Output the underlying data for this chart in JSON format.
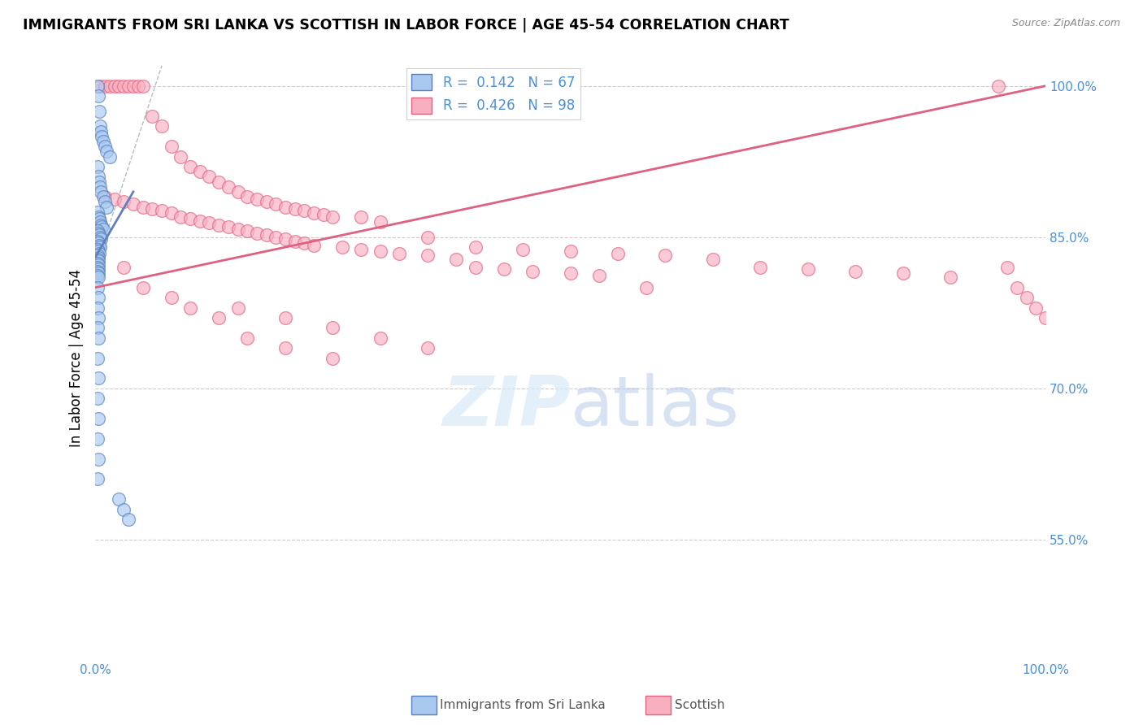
{
  "title": "IMMIGRANTS FROM SRI LANKA VS SCOTTISH IN LABOR FORCE | AGE 45-54 CORRELATION CHART",
  "source": "Source: ZipAtlas.com",
  "ylabel": "In Labor Force | Age 45-54",
  "xlim": [
    0.0,
    1.0
  ],
  "ylim": [
    0.43,
    1.03
  ],
  "yticks": [
    0.55,
    0.7,
    0.85,
    1.0
  ],
  "ytick_labels": [
    "55.0%",
    "70.0%",
    "85.0%",
    "100.0%"
  ],
  "blue_color": "#a8c8f0",
  "blue_edge_color": "#5580c0",
  "pink_color": "#f8b0c0",
  "pink_edge_color": "#e06080",
  "blue_line_color": "#6080c0",
  "pink_line_color": "#e06080",
  "axis_label_color": "#4a90d9",
  "grid_color": "#cccccc",
  "background_color": "#ffffff",
  "watermark_color": "#d8eaf8",
  "blue_scatter_x": [
    0.002,
    0.003,
    0.004,
    0.005,
    0.006,
    0.007,
    0.008,
    0.01,
    0.012,
    0.015,
    0.002,
    0.003,
    0.004,
    0.005,
    0.006,
    0.008,
    0.01,
    0.012,
    0.002,
    0.003,
    0.004,
    0.005,
    0.006,
    0.007,
    0.008,
    0.002,
    0.003,
    0.004,
    0.005,
    0.006,
    0.002,
    0.003,
    0.004,
    0.005,
    0.002,
    0.003,
    0.004,
    0.002,
    0.003,
    0.002,
    0.003,
    0.002,
    0.003,
    0.002,
    0.003,
    0.002,
    0.003,
    0.002,
    0.003,
    0.002,
    0.003,
    0.002,
    0.003,
    0.002,
    0.003,
    0.002,
    0.003,
    0.002,
    0.003,
    0.002,
    0.003,
    0.002,
    0.025,
    0.03,
    0.035
  ],
  "blue_scatter_y": [
    1.0,
    0.99,
    0.975,
    0.96,
    0.955,
    0.95,
    0.945,
    0.94,
    0.935,
    0.93,
    0.92,
    0.91,
    0.905,
    0.9,
    0.895,
    0.89,
    0.885,
    0.88,
    0.875,
    0.87,
    0.868,
    0.865,
    0.862,
    0.86,
    0.858,
    0.856,
    0.854,
    0.852,
    0.85,
    0.848,
    0.846,
    0.844,
    0.842,
    0.84,
    0.838,
    0.836,
    0.834,
    0.832,
    0.83,
    0.828,
    0.826,
    0.824,
    0.822,
    0.82,
    0.818,
    0.816,
    0.814,
    0.812,
    0.81,
    0.8,
    0.79,
    0.78,
    0.77,
    0.76,
    0.75,
    0.73,
    0.71,
    0.69,
    0.67,
    0.65,
    0.63,
    0.61,
    0.59,
    0.58,
    0.57
  ],
  "pink_scatter_x": [
    0.005,
    0.01,
    0.015,
    0.02,
    0.025,
    0.03,
    0.035,
    0.04,
    0.045,
    0.05,
    0.06,
    0.07,
    0.08,
    0.09,
    0.1,
    0.11,
    0.12,
    0.13,
    0.14,
    0.15,
    0.16,
    0.17,
    0.18,
    0.19,
    0.2,
    0.21,
    0.22,
    0.23,
    0.24,
    0.25,
    0.01,
    0.02,
    0.03,
    0.04,
    0.05,
    0.06,
    0.07,
    0.08,
    0.09,
    0.1,
    0.11,
    0.12,
    0.13,
    0.14,
    0.15,
    0.16,
    0.17,
    0.18,
    0.19,
    0.2,
    0.21,
    0.22,
    0.23,
    0.26,
    0.28,
    0.3,
    0.32,
    0.35,
    0.38,
    0.4,
    0.43,
    0.46,
    0.5,
    0.53,
    0.58,
    0.28,
    0.3,
    0.35,
    0.4,
    0.45,
    0.5,
    0.55,
    0.6,
    0.65,
    0.7,
    0.75,
    0.8,
    0.85,
    0.9,
    0.95,
    0.96,
    0.97,
    0.98,
    0.99,
    1.0,
    0.15,
    0.2,
    0.25,
    0.3,
    0.35,
    0.03,
    0.05,
    0.08,
    0.1,
    0.13,
    0.16,
    0.2,
    0.25
  ],
  "pink_scatter_y": [
    1.0,
    1.0,
    1.0,
    1.0,
    1.0,
    1.0,
    1.0,
    1.0,
    1.0,
    1.0,
    0.97,
    0.96,
    0.94,
    0.93,
    0.92,
    0.915,
    0.91,
    0.905,
    0.9,
    0.895,
    0.89,
    0.888,
    0.885,
    0.883,
    0.88,
    0.878,
    0.876,
    0.874,
    0.872,
    0.87,
    0.89,
    0.888,
    0.885,
    0.883,
    0.88,
    0.878,
    0.876,
    0.874,
    0.87,
    0.868,
    0.866,
    0.864,
    0.862,
    0.86,
    0.858,
    0.856,
    0.854,
    0.852,
    0.85,
    0.848,
    0.846,
    0.844,
    0.842,
    0.84,
    0.838,
    0.836,
    0.834,
    0.832,
    0.828,
    0.82,
    0.818,
    0.816,
    0.814,
    0.812,
    0.8,
    0.87,
    0.865,
    0.85,
    0.84,
    0.838,
    0.836,
    0.834,
    0.832,
    0.828,
    0.82,
    0.818,
    0.816,
    0.814,
    0.81,
    1.0,
    0.82,
    0.8,
    0.79,
    0.78,
    0.77,
    0.78,
    0.77,
    0.76,
    0.75,
    0.74,
    0.82,
    0.8,
    0.79,
    0.78,
    0.77,
    0.75,
    0.74,
    0.73
  ],
  "pink_line_x0": 0.0,
  "pink_line_y0": 0.8,
  "pink_line_x1": 1.0,
  "pink_line_y1": 1.0,
  "blue_line_x0": 0.0,
  "blue_line_y0": 0.83,
  "blue_line_x1": 0.04,
  "blue_line_y1": 0.895
}
